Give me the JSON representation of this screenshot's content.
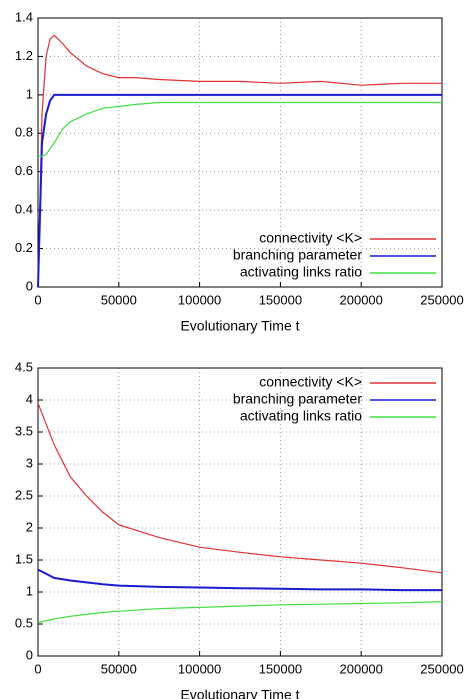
{
  "chart_data": [
    {
      "type": "line",
      "xlabel": "Evolutionary Time t",
      "x": [
        0,
        2500,
        5000,
        7500,
        10000,
        15000,
        20000,
        30000,
        40000,
        50000,
        60000,
        75000,
        100000,
        125000,
        150000,
        175000,
        200000,
        225000,
        250000
      ],
      "series": [
        {
          "name": "connectivity <K>",
          "color": "#e03030",
          "values": [
            0,
            0.9,
            1.2,
            1.29,
            1.31,
            1.27,
            1.22,
            1.15,
            1.11,
            1.09,
            1.09,
            1.08,
            1.07,
            1.07,
            1.06,
            1.07,
            1.05,
            1.06,
            1.06
          ]
        },
        {
          "name": "branching parameter",
          "color": "#1a1ad0",
          "values": [
            0,
            0.75,
            0.9,
            0.97,
            1.0,
            1.0,
            1.0,
            1.0,
            1.0,
            1.0,
            1.0,
            1.0,
            1.0,
            1.0,
            1.0,
            1.0,
            1.0,
            1.0,
            1.0
          ]
        },
        {
          "name": "activating links ratio",
          "color": "#40e040",
          "values": [
            0.68,
            0.68,
            0.69,
            0.72,
            0.75,
            0.82,
            0.86,
            0.9,
            0.93,
            0.94,
            0.95,
            0.96,
            0.96,
            0.96,
            0.96,
            0.96,
            0.96,
            0.96,
            0.96
          ]
        }
      ],
      "xlim": [
        0,
        250000
      ],
      "xticks": [
        0,
        50000,
        100000,
        150000,
        200000,
        250000
      ],
      "ylim": [
        0,
        1.4
      ],
      "yticks": [
        0,
        0.2,
        0.4,
        0.6,
        0.8,
        1,
        1.2,
        1.4
      ],
      "grid": true,
      "legend": "lower right"
    },
    {
      "type": "line",
      "xlabel": "Evolutionary Time t",
      "x": [
        0,
        10000,
        20000,
        30000,
        40000,
        50000,
        75000,
        100000,
        125000,
        150000,
        175000,
        200000,
        225000,
        250000
      ],
      "series": [
        {
          "name": "connectivity <K>",
          "color": "#e03030",
          "values": [
            3.95,
            3.3,
            2.8,
            2.5,
            2.25,
            2.05,
            1.85,
            1.7,
            1.62,
            1.55,
            1.5,
            1.45,
            1.38,
            1.3
          ]
        },
        {
          "name": "branching parameter",
          "color": "#1a1ad0",
          "values": [
            1.35,
            1.22,
            1.18,
            1.15,
            1.12,
            1.1,
            1.08,
            1.07,
            1.06,
            1.05,
            1.04,
            1.04,
            1.03,
            1.03
          ]
        },
        {
          "name": "activating links ratio",
          "color": "#40e040",
          "values": [
            0.52,
            0.58,
            0.62,
            0.65,
            0.68,
            0.7,
            0.74,
            0.76,
            0.78,
            0.8,
            0.81,
            0.82,
            0.83,
            0.85
          ]
        }
      ],
      "xlim": [
        0,
        250000
      ],
      "xticks": [
        0,
        50000,
        100000,
        150000,
        200000,
        250000
      ],
      "ylim": [
        0,
        4.5
      ],
      "yticks": [
        0,
        0.5,
        1,
        1.5,
        2,
        2.5,
        3,
        3.5,
        4,
        4.5
      ],
      "grid": true,
      "legend": "upper right"
    }
  ]
}
